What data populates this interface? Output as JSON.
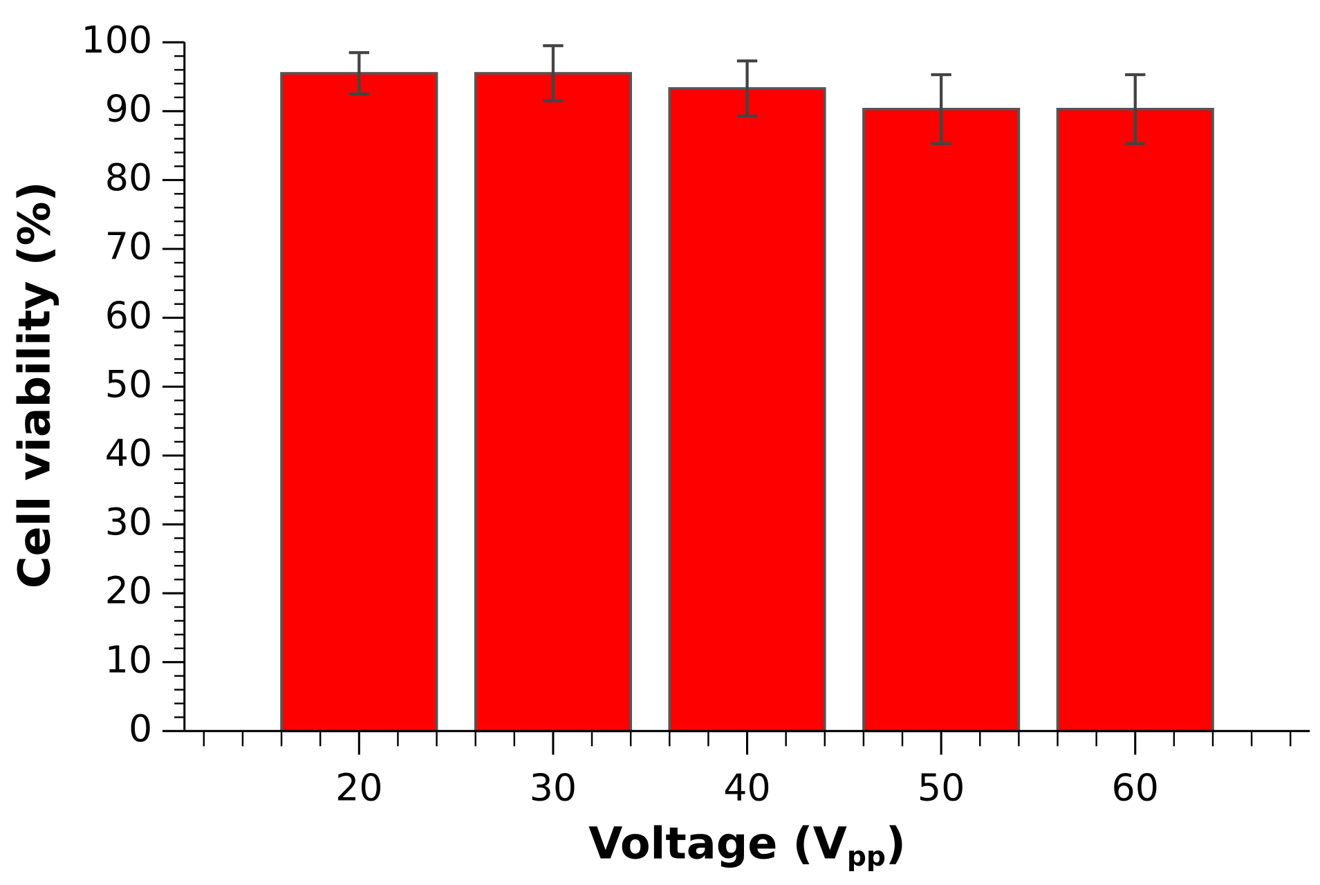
{
  "chart_data": {
    "type": "bar",
    "xlabel": [
      "Voltage (V",
      "pp",
      ")"
    ],
    "ylabel": "Cell viability (%)",
    "x": [
      20,
      30,
      40,
      50,
      60
    ],
    "values": [
      95.5,
      95.5,
      93.3,
      90.3,
      90.3
    ],
    "errors": [
      3,
      4,
      4,
      5,
      5
    ],
    "color": "#ff0000",
    "bar_width": 8,
    "xlim": [
      11,
      69
    ],
    "xticks": [
      20,
      30,
      40,
      50,
      60
    ],
    "x_minor_step": 2,
    "ylim": [
      0,
      100
    ],
    "yticks": [
      0,
      10,
      20,
      30,
      40,
      50,
      60,
      70,
      80,
      90,
      100
    ],
    "y_minor_step": 2,
    "grid": false
  }
}
